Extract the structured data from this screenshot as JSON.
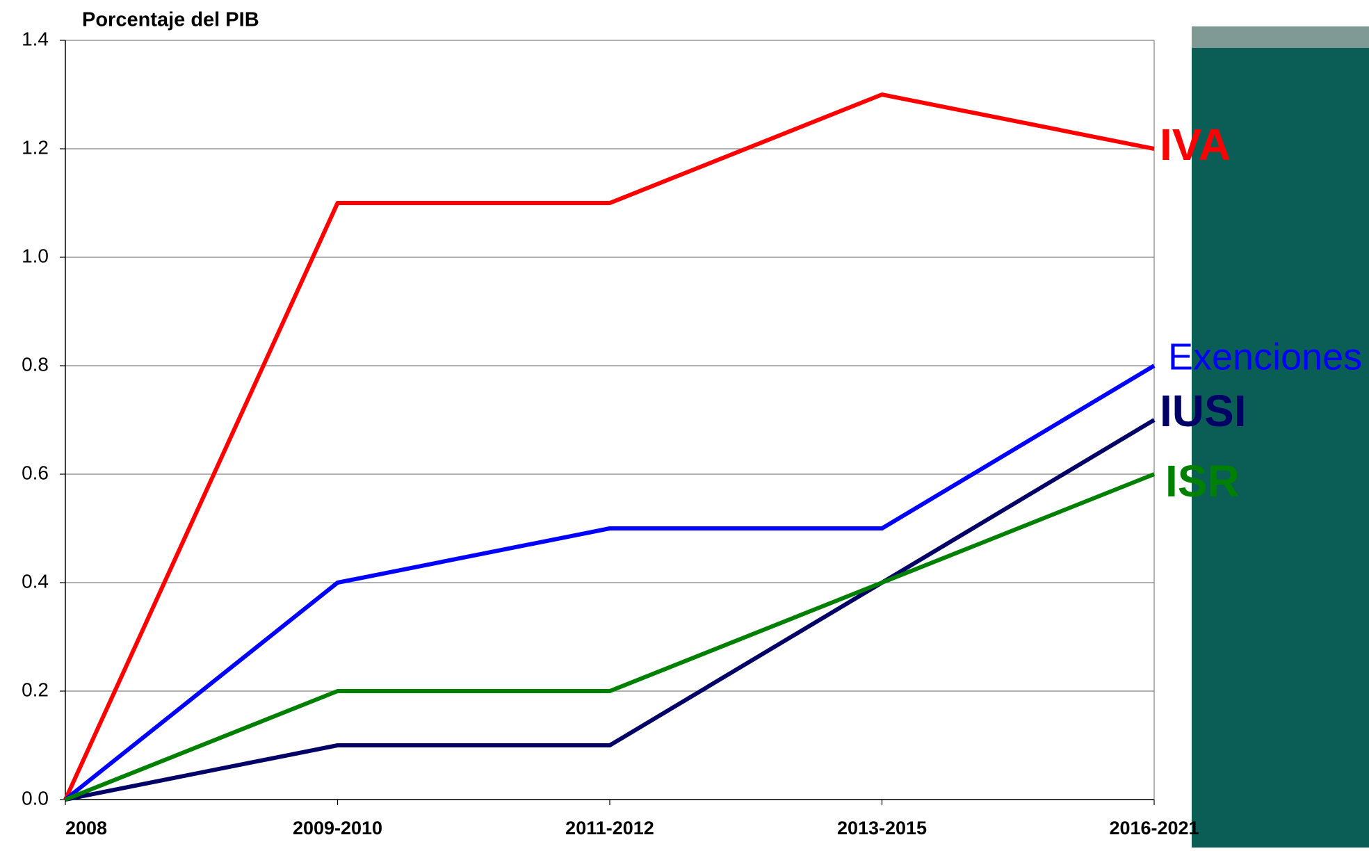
{
  "chart_data": {
    "type": "line",
    "title": "Porcentaje del PIB",
    "categories": [
      "2008",
      "2009-2010",
      "2011-2012",
      "2013-2015",
      "2016-2021"
    ],
    "series": [
      {
        "name": "IVA",
        "color": "#ff0000",
        "values": [
          0,
          1.1,
          1.1,
          1.3,
          1.2
        ]
      },
      {
        "name": "Exenciones",
        "color": "#0000ff",
        "values": [
          0,
          0.4,
          0.5,
          0.5,
          0.8
        ]
      },
      {
        "name": "IUSI",
        "color": "#000066",
        "values": [
          0,
          0.1,
          0.1,
          0.4,
          0.7
        ]
      },
      {
        "name": "ISR",
        "color": "#008000",
        "values": [
          0,
          0.2,
          0.2,
          0.4,
          0.6
        ]
      }
    ],
    "ylim": [
      0,
      1.4
    ],
    "yticks": [
      {
        "value": 0,
        "label": "0.0"
      },
      0.2,
      0.4,
      0.6,
      0.8,
      {
        "value": 1,
        "label": "1.0"
      },
      1.2,
      1.4
    ],
    "grid": true
  }
}
